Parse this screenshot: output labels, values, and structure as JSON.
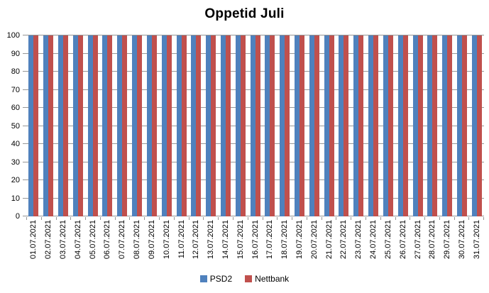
{
  "title": "Oppetid Juli",
  "chart_data": {
    "type": "bar",
    "title": "Oppetid Juli",
    "categories": [
      "01.07.2021",
      "02.07.2021",
      "03.07.2021",
      "04.07.2021",
      "05.07.2021",
      "06.07.2021",
      "07.07.2021",
      "08.07.2021",
      "09.07.2021",
      "10.07.2021",
      "11.07.2021",
      "12.07.2021",
      "13.07.2021",
      "14.07.2021",
      "15.07.2021",
      "16.07.2021",
      "17.07.2021",
      "18.07.2021",
      "19.07.2021",
      "20.07.2021",
      "21.07.2021",
      "22.07.2021",
      "23.07.2021",
      "24.07.2021",
      "25.07.2021",
      "26.07.2021",
      "27.07.2021",
      "28.07.2021",
      "29.07.2021",
      "30.07.2021",
      "31.07.2021"
    ],
    "series": [
      {
        "name": "PSD2",
        "color": "#4F81BD",
        "values": [
          100,
          100,
          100,
          100,
          100,
          100,
          100,
          100,
          100,
          100,
          100,
          100,
          100,
          100,
          100,
          100,
          100,
          100,
          100,
          100,
          100,
          100,
          100,
          100,
          100,
          100,
          100,
          100,
          100,
          100,
          100
        ]
      },
      {
        "name": "Nettbank",
        "color": "#C0504D",
        "values": [
          100,
          100,
          100,
          100,
          100,
          100,
          100,
          100,
          100,
          100,
          100,
          100,
          100,
          100,
          100,
          100,
          100,
          100,
          100,
          100,
          100,
          100,
          100,
          100,
          100,
          100,
          100,
          100,
          100,
          100,
          100
        ]
      }
    ],
    "xlabel": "",
    "ylabel": "",
    "ylim": [
      0,
      100
    ],
    "ytick_interval": 10,
    "grid": true,
    "legend_position": "bottom",
    "gridline_color": "#969696",
    "axis_color": "#969696",
    "background_color": "#ffffff"
  }
}
